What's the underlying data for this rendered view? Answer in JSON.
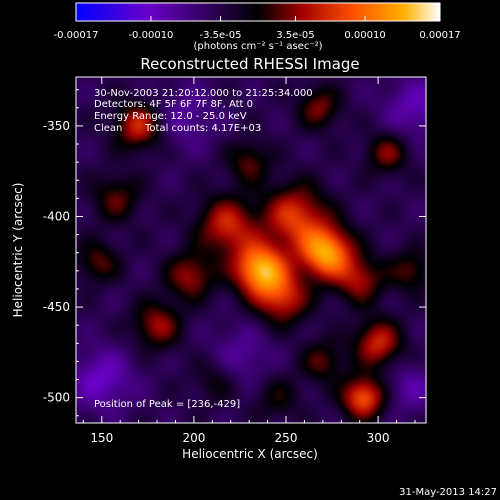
{
  "colorbar": {
    "tick_labels": [
      "-0.00017",
      "-0.00010",
      "-3.5e-05",
      "3.5e-05",
      "0.00010",
      "0.00017"
    ],
    "tick_values": [
      -0.00017,
      -0.0001,
      -3.5e-05,
      3.5e-05,
      0.0001,
      0.00017
    ],
    "range": [
      -0.00017,
      0.00017
    ],
    "units_label": "(photons cm⁻² s⁻¹ asec⁻²)"
  },
  "chart_data": {
    "type": "heatmap",
    "title": "Reconstructed RHESSI Image",
    "xlabel": "Heliocentric X (arcsec)",
    "ylabel": "Heliocentric Y (arcsec)",
    "xlim": [
      136,
      326
    ],
    "ylim": [
      -514,
      -323
    ],
    "x_ticks": [
      150,
      200,
      250,
      300
    ],
    "y_ticks": [
      -350,
      -400,
      -450,
      -500
    ],
    "colormap": [
      "#0000ff",
      "#6a00c8",
      "#2a0050",
      "#000000",
      "#a00000",
      "#ff5000",
      "#ffb000",
      "#ffffff"
    ],
    "sources": [
      {
        "x": 236,
        "y": -429,
        "amp": 0.00017,
        "sigma": 10
      },
      {
        "x": 272,
        "y": -420,
        "amp": 0.000165,
        "sigma": 10
      },
      {
        "x": 255,
        "y": -400,
        "amp": 0.00011,
        "sigma": 12
      },
      {
        "x": 218,
        "y": -405,
        "amp": 0.0001,
        "sigma": 11
      },
      {
        "x": 248,
        "y": -445,
        "amp": 0.0001,
        "sigma": 10
      },
      {
        "x": 290,
        "y": -435,
        "amp": 8e-05,
        "sigma": 9
      },
      {
        "x": 198,
        "y": -433,
        "amp": 8e-05,
        "sigma": 9
      },
      {
        "x": 170,
        "y": -350,
        "amp": 0.0001,
        "sigma": 9
      },
      {
        "x": 158,
        "y": -390,
        "amp": 6e-05,
        "sigma": 9
      },
      {
        "x": 230,
        "y": -370,
        "amp": 6e-05,
        "sigma": 8
      },
      {
        "x": 268,
        "y": -340,
        "amp": 7e-05,
        "sigma": 8
      },
      {
        "x": 305,
        "y": -365,
        "amp": 7e-05,
        "sigma": 8
      },
      {
        "x": 180,
        "y": -460,
        "amp": 8e-05,
        "sigma": 9
      },
      {
        "x": 148,
        "y": -425,
        "amp": 6e-05,
        "sigma": 8
      },
      {
        "x": 300,
        "y": -470,
        "amp": 0.0001,
        "sigma": 9
      },
      {
        "x": 292,
        "y": -500,
        "amp": 0.00013,
        "sigma": 8
      },
      {
        "x": 270,
        "y": -480,
        "amp": 6e-05,
        "sigma": 8
      },
      {
        "x": 318,
        "y": -430,
        "amp": 6e-05,
        "sigma": 8
      },
      {
        "x": 212,
        "y": -490,
        "amp": 4e-05,
        "sigma": 9
      },
      {
        "x": 245,
        "y": -500,
        "amp": 4e-05,
        "sigma": 9
      },
      {
        "x": 150,
        "y": -490,
        "amp": -6e-05,
        "sigma": 12
      },
      {
        "x": 195,
        "y": -345,
        "amp": -4e-05,
        "sigma": 12
      },
      {
        "x": 320,
        "y": -340,
        "amp": -5e-05,
        "sigma": 12
      },
      {
        "x": 225,
        "y": -478,
        "amp": -4e-05,
        "sigma": 12
      },
      {
        "x": 318,
        "y": -495,
        "amp": -4e-05,
        "sigma": 10
      }
    ],
    "annotations": {
      "time_range": "30-Nov-2003 21:20:12.000 to 21:25:34.000",
      "detectors": "Detectors: 4F 5F 6F 7F 8F, Att 0",
      "energy": "Energy Range: 12.0 - 25.0 keV",
      "clean_label": "Clean",
      "total_counts": "Total counts: 4.17E+03",
      "peak": "Position of Peak = [236,-429]"
    }
  },
  "footer": {
    "date_stamp": "31-May-2013 14:27"
  }
}
